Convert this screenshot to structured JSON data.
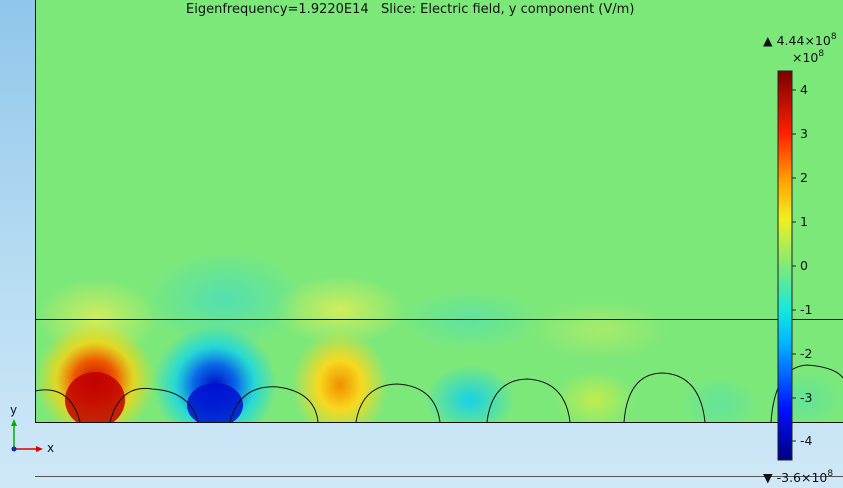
{
  "plot": {
    "title": "Eigenfrequency=1.9220E14   Slice: Electric field, y component (V/m)"
  },
  "colorbar": {
    "max_label": "4.44×10",
    "max_exp": "8",
    "scale_label": "×10",
    "scale_exp": "8",
    "min_label": "-3.6×10",
    "min_exp": "8",
    "max_symbol": "▲",
    "min_symbol": "▼",
    "ticks": [
      "4",
      "3",
      "2",
      "1",
      "0",
      "-1",
      "-2",
      "-3",
      "-4"
    ],
    "colormap": "rainbow"
  },
  "triad": {
    "y_label": "y",
    "x_label": "x"
  }
}
